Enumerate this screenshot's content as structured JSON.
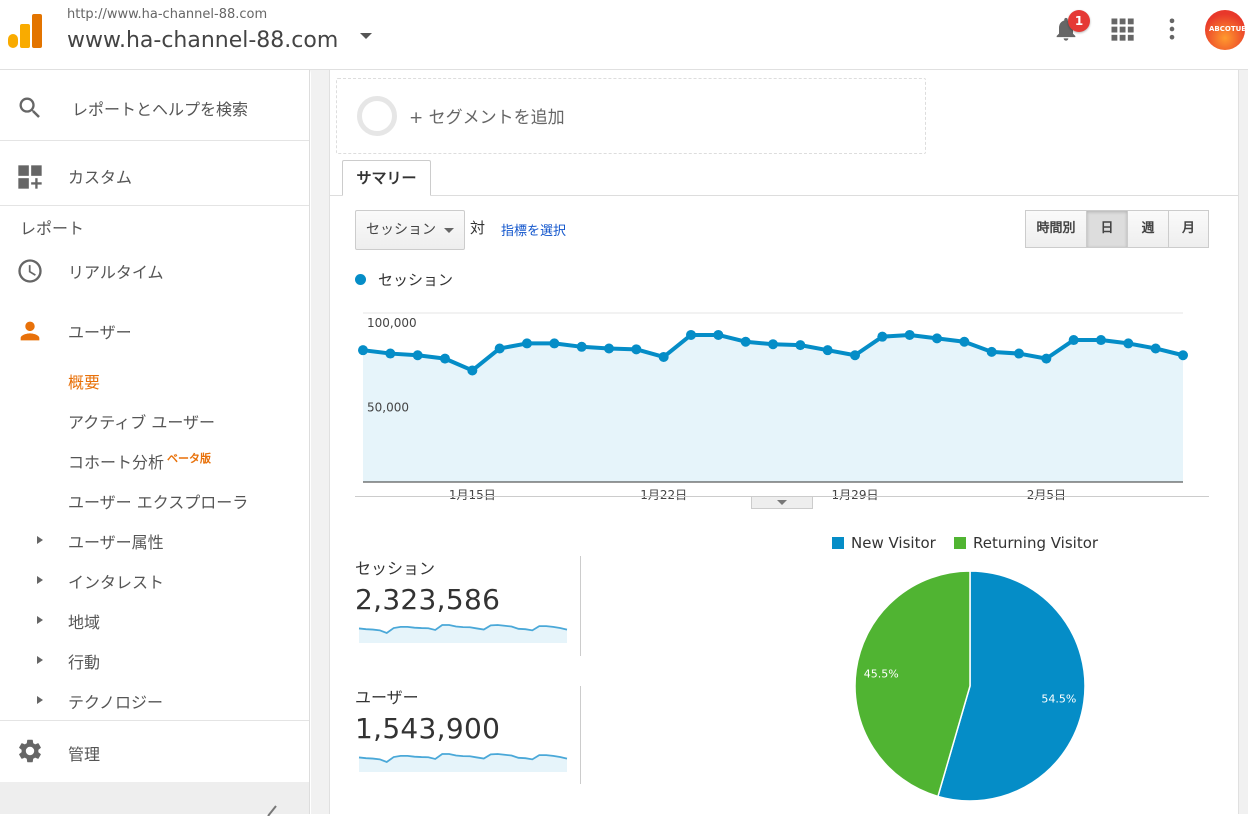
{
  "header": {
    "site_url": "http://www.ha-channel-88.com",
    "site_name": "www.ha-channel-88.com",
    "notification_count": "1",
    "avatar_text": "ABCOTUBE"
  },
  "sidebar": {
    "search_label": "レポートとヘルプを検索",
    "custom_label": "カスタム",
    "reports_section": "レポート",
    "realtime_label": "リアルタイム",
    "users_label": "ユーザー",
    "users_sub": [
      {
        "label": "概要",
        "active": true
      },
      {
        "label": "アクティブ ユーザー"
      },
      {
        "label": "コホート分析",
        "badge": "ベータ版"
      },
      {
        "label": "ユーザー エクスプローラ"
      }
    ],
    "expandable": [
      "ユーザー属性",
      "インタレスト",
      "地域",
      "行動",
      "テクノロジー"
    ],
    "admin_label": "管理"
  },
  "main": {
    "segment_label": "+ セグメントを追加",
    "tab_summary": "サマリー",
    "metric_select": "セッション",
    "vs_label": "対",
    "pick_metric": "指標を選択",
    "granularity": [
      "時間別",
      "日",
      "週",
      "月"
    ],
    "granularity_active": "日",
    "chart_legend": "セッション"
  },
  "chart_data": [
    {
      "type": "area",
      "series": [
        {
          "name": "セッション",
          "color": "#058dc7",
          "values": [
            78000,
            76000,
            75000,
            73000,
            66000,
            79000,
            82000,
            82000,
            80000,
            79000,
            78500,
            74000,
            87000,
            87000,
            83000,
            81500,
            81000,
            78000,
            75000,
            86000,
            87000,
            85000,
            83000,
            77000,
            76000,
            73000,
            84000,
            84000,
            82000,
            79000,
            75000
          ]
        }
      ],
      "y_ticks": [
        "100,000",
        "50,000"
      ],
      "ylim": [
        0,
        100000
      ],
      "x_tick_labels": [
        "1月15日",
        "1月22日",
        "1月29日",
        "2月5日"
      ],
      "grid": true
    },
    {
      "type": "pie",
      "legend": [
        "New Visitor",
        "Returning Visitor"
      ],
      "values": [
        54.5,
        45.5
      ],
      "labels": [
        "54.5%",
        "45.5%"
      ],
      "colors": [
        "#058dc7",
        "#50b432"
      ],
      "legend_placement": "top"
    }
  ],
  "scorecards": [
    {
      "label": "セッション",
      "value": "2,323,586"
    },
    {
      "label": "ユーザー",
      "value": "1,543,900"
    }
  ]
}
